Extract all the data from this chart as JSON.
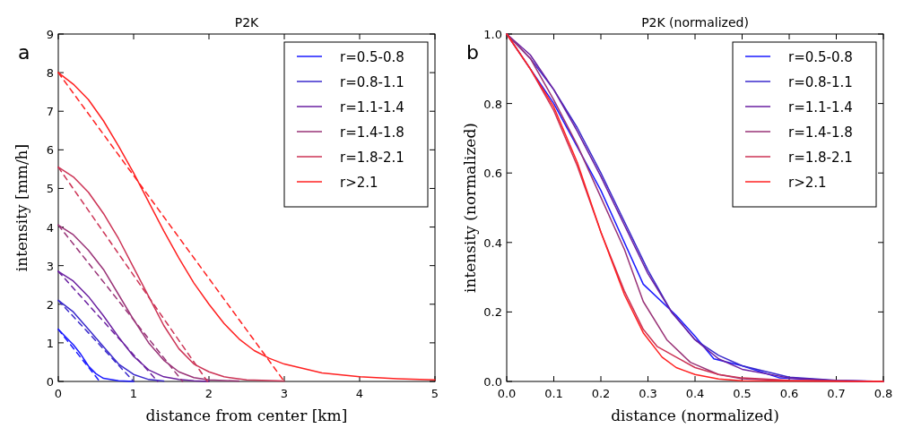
{
  "chart_data": [
    {
      "type": "line",
      "title": "P2K",
      "xlabel": "distance from center [km]",
      "ylabel": "intensity [mm/h]",
      "annotations": [
        "a"
      ],
      "xlim": [
        0,
        5
      ],
      "xticks": [
        0,
        1,
        2,
        3,
        4,
        5
      ],
      "ylim": [
        0,
        9
      ],
      "yticks": [
        0,
        1,
        2,
        3,
        4,
        5,
        6,
        7,
        8,
        9
      ],
      "grid": false,
      "legend": "top right",
      "line_style": "solid",
      "series": [
        {
          "name": "r=0.5-0.8",
          "color": "#1a1aff",
          "x": [
            0,
            0.1,
            0.2,
            0.3,
            0.4,
            0.5,
            0.6,
            0.8,
            1.0
          ],
          "values": [
            1.35,
            1.15,
            0.95,
            0.7,
            0.4,
            0.2,
            0.08,
            0.02,
            0.0
          ]
        },
        {
          "name": "r=0.8-1.1",
          "color": "#3a2acc",
          "x": [
            0,
            0.2,
            0.4,
            0.6,
            0.8,
            1.0,
            1.2,
            1.4
          ],
          "values": [
            2.1,
            1.8,
            1.35,
            0.9,
            0.45,
            0.18,
            0.05,
            0.01
          ]
        },
        {
          "name": "r=1.1-1.4",
          "color": "#6a1fa0",
          "x": [
            0,
            0.2,
            0.4,
            0.6,
            0.8,
            1.0,
            1.2,
            1.4,
            1.6,
            1.8,
            2.0
          ],
          "values": [
            2.85,
            2.6,
            2.2,
            1.7,
            1.15,
            0.65,
            0.3,
            0.12,
            0.05,
            0.02,
            0.0
          ]
        },
        {
          "name": "r=1.4-1.8",
          "color": "#993377",
          "x": [
            0,
            0.2,
            0.4,
            0.6,
            0.8,
            1.0,
            1.2,
            1.4,
            1.6,
            1.8,
            2.0,
            2.4
          ],
          "values": [
            4.05,
            3.8,
            3.4,
            2.9,
            2.25,
            1.6,
            1.0,
            0.55,
            0.25,
            0.1,
            0.04,
            0.01
          ]
        },
        {
          "name": "r=1.8-2.1",
          "color": "#cc3355",
          "x": [
            0,
            0.2,
            0.4,
            0.6,
            0.8,
            1.0,
            1.2,
            1.4,
            1.6,
            1.8,
            2.0,
            2.2,
            2.5,
            3.0
          ],
          "values": [
            5.55,
            5.3,
            4.9,
            4.35,
            3.7,
            2.95,
            2.2,
            1.45,
            0.85,
            0.45,
            0.25,
            0.12,
            0.04,
            0.01
          ]
        },
        {
          "name": "r>2.1",
          "color": "#ff2020",
          "x": [
            0,
            0.2,
            0.4,
            0.6,
            0.8,
            1.0,
            1.2,
            1.4,
            1.6,
            1.8,
            2.0,
            2.2,
            2.4,
            2.6,
            2.8,
            3.0,
            3.5,
            4.0,
            4.5,
            5.0
          ],
          "values": [
            8.0,
            7.7,
            7.3,
            6.75,
            6.1,
            5.4,
            4.65,
            3.9,
            3.2,
            2.55,
            2.0,
            1.5,
            1.1,
            0.8,
            0.6,
            0.45,
            0.22,
            0.12,
            0.07,
            0.04
          ]
        },
        {
          "color": "#1a1aff",
          "line_style": "dashed",
          "x": [
            0,
            0.55
          ],
          "values": [
            1.35,
            0
          ]
        },
        {
          "color": "#3a2acc",
          "line_style": "dashed",
          "x": [
            0,
            1.0
          ],
          "values": [
            2.1,
            0
          ]
        },
        {
          "color": "#6a1fa0",
          "line_style": "dashed",
          "x": [
            0,
            1.32
          ],
          "values": [
            2.85,
            0
          ]
        },
        {
          "color": "#993377",
          "line_style": "dashed",
          "x": [
            0,
            1.65
          ],
          "values": [
            4.05,
            0
          ]
        },
        {
          "color": "#cc3355",
          "line_style": "dashed",
          "x": [
            0,
            1.98
          ],
          "values": [
            5.55,
            0
          ]
        },
        {
          "color": "#ff2020",
          "line_style": "dashed",
          "x": [
            0,
            3.0
          ],
          "values": [
            8.0,
            0
          ]
        }
      ]
    },
    {
      "type": "line",
      "title": "P2K (normalized)",
      "xlabel": "distance (normalized)",
      "ylabel": "intensity (normalized)",
      "annotations": [
        "b"
      ],
      "xlim": [
        0,
        0.8
      ],
      "xticks": [
        {
          "value": 0,
          "label": "0.0"
        },
        0.1,
        0.2,
        0.3,
        0.4,
        0.5,
        0.6,
        0.7,
        0.8
      ],
      "ylim": [
        0,
        1
      ],
      "yticks": [
        {
          "value": 0,
          "label": "0.0"
        },
        0.2,
        0.4,
        0.6,
        0.8,
        {
          "value": 1,
          "label": "1.0"
        }
      ],
      "grid": false,
      "legend": "top right",
      "line_style": "solid",
      "series": [
        {
          "name": "r=0.5-0.8",
          "color": "#1a1aff",
          "x": [
            0,
            0.1,
            0.2,
            0.29,
            0.36,
            0.4,
            0.44,
            0.5,
            0.58,
            0.7,
            0.8
          ],
          "values": [
            1,
            0.8,
            0.55,
            0.28,
            0.19,
            0.13,
            0.065,
            0.045,
            0.01,
            0.002,
            0
          ]
        },
        {
          "name": "r=0.8-1.1",
          "color": "#3a2acc",
          "x": [
            0,
            0.05,
            0.1,
            0.15,
            0.2,
            0.25,
            0.3,
            0.35,
            0.4,
            0.45,
            0.5,
            0.6,
            0.7,
            0.8
          ],
          "values": [
            1,
            0.93,
            0.84,
            0.73,
            0.6,
            0.46,
            0.32,
            0.2,
            0.12,
            0.075,
            0.045,
            0.012,
            0.003,
            0
          ]
        },
        {
          "name": "r=1.1-1.4",
          "color": "#6a1fa0",
          "x": [
            0,
            0.05,
            0.1,
            0.15,
            0.2,
            0.25,
            0.3,
            0.35,
            0.4,
            0.45,
            0.5,
            0.6,
            0.7,
            0.8
          ],
          "values": [
            1,
            0.94,
            0.84,
            0.72,
            0.59,
            0.45,
            0.31,
            0.2,
            0.12,
            0.065,
            0.035,
            0.01,
            0.002,
            0
          ]
        },
        {
          "name": "r=1.4-1.8",
          "color": "#993377",
          "x": [
            0,
            0.05,
            0.1,
            0.15,
            0.2,
            0.25,
            0.29,
            0.34,
            0.39,
            0.45,
            0.5,
            0.6,
            0.8
          ],
          "values": [
            1,
            0.93,
            0.81,
            0.68,
            0.53,
            0.38,
            0.23,
            0.12,
            0.055,
            0.02,
            0.008,
            0.002,
            0
          ]
        },
        {
          "name": "r=1.8-2.1",
          "color": "#cc3355",
          "x": [
            0,
            0.05,
            0.1,
            0.15,
            0.2,
            0.25,
            0.29,
            0.32,
            0.36,
            0.4,
            0.45,
            0.5,
            0.6,
            0.8
          ],
          "values": [
            1,
            0.9,
            0.78,
            0.62,
            0.43,
            0.26,
            0.15,
            0.1,
            0.07,
            0.04,
            0.02,
            0.01,
            0.003,
            0
          ]
        },
        {
          "name": "r>2.1",
          "color": "#ff2020",
          "x": [
            0,
            0.05,
            0.1,
            0.15,
            0.2,
            0.25,
            0.29,
            0.33,
            0.36,
            0.4,
            0.45,
            0.5,
            0.8
          ],
          "values": [
            1,
            0.9,
            0.79,
            0.63,
            0.43,
            0.25,
            0.14,
            0.07,
            0.04,
            0.02,
            0.007,
            0.002,
            0
          ]
        }
      ]
    }
  ]
}
